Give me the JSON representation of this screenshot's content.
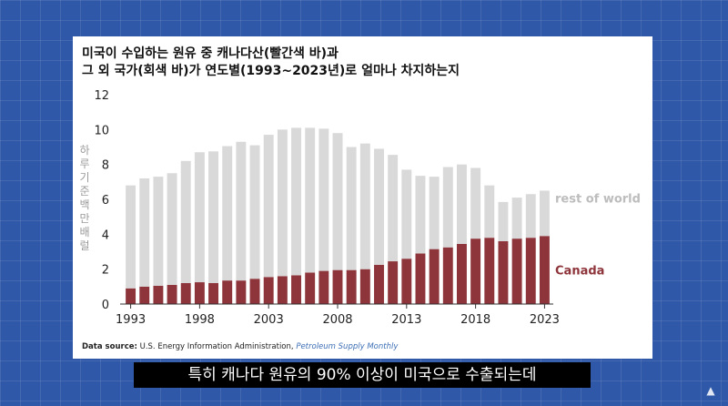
{
  "subtitle": "특히 캐나다 원유의 90% 이상이 미국으로 수출되는데",
  "chart_data": {
    "type": "bar",
    "stacked": true,
    "title_line1": "미국이 수입하는 원유 중 캐나다산(빨간색 바)과",
    "title_line2": "그 외 국가(회색 바)가 연도별(1993~2023년)로 얼마나 차지하는지",
    "ylabel": "하루 기준 백만배럴",
    "xlabel": "",
    "ylim": [
      0,
      12
    ],
    "y_ticks": [
      0,
      2,
      4,
      6,
      8,
      10,
      12
    ],
    "x_tick_labels": [
      "1993",
      "1998",
      "2003",
      "2008",
      "2013",
      "2018",
      "2023"
    ],
    "categories": [
      1993,
      1994,
      1995,
      1996,
      1997,
      1998,
      1999,
      2000,
      2001,
      2002,
      2003,
      2004,
      2005,
      2006,
      2007,
      2008,
      2009,
      2010,
      2011,
      2012,
      2013,
      2014,
      2015,
      2016,
      2017,
      2018,
      2019,
      2020,
      2021,
      2022,
      2023
    ],
    "series": [
      {
        "name": "Canada",
        "color": "#8e353b",
        "values": [
          0.9,
          1.0,
          1.05,
          1.1,
          1.2,
          1.25,
          1.2,
          1.35,
          1.35,
          1.45,
          1.55,
          1.6,
          1.65,
          1.8,
          1.9,
          1.95,
          1.95,
          2.0,
          2.25,
          2.45,
          2.6,
          2.9,
          3.15,
          3.25,
          3.45,
          3.75,
          3.8,
          3.6,
          3.75,
          3.8,
          3.9
        ]
      },
      {
        "name": "rest of world",
        "color": "#d9d9d9",
        "values": [
          5.9,
          6.2,
          6.25,
          6.4,
          7.0,
          7.45,
          7.55,
          7.7,
          7.95,
          7.65,
          8.15,
          8.4,
          8.45,
          8.3,
          8.15,
          7.85,
          7.05,
          7.2,
          6.65,
          6.1,
          5.1,
          4.45,
          4.15,
          4.6,
          4.55,
          4.05,
          3.0,
          2.25,
          2.35,
          2.5,
          2.6
        ]
      }
    ],
    "legend_placement": "right",
    "grid": false
  },
  "source": {
    "label": "Data source:",
    "text": " U.S. Energy Information Administration, ",
    "publication": "Petroleum Supply Monthly"
  },
  "logo_icon": "graduation-cap-icon"
}
